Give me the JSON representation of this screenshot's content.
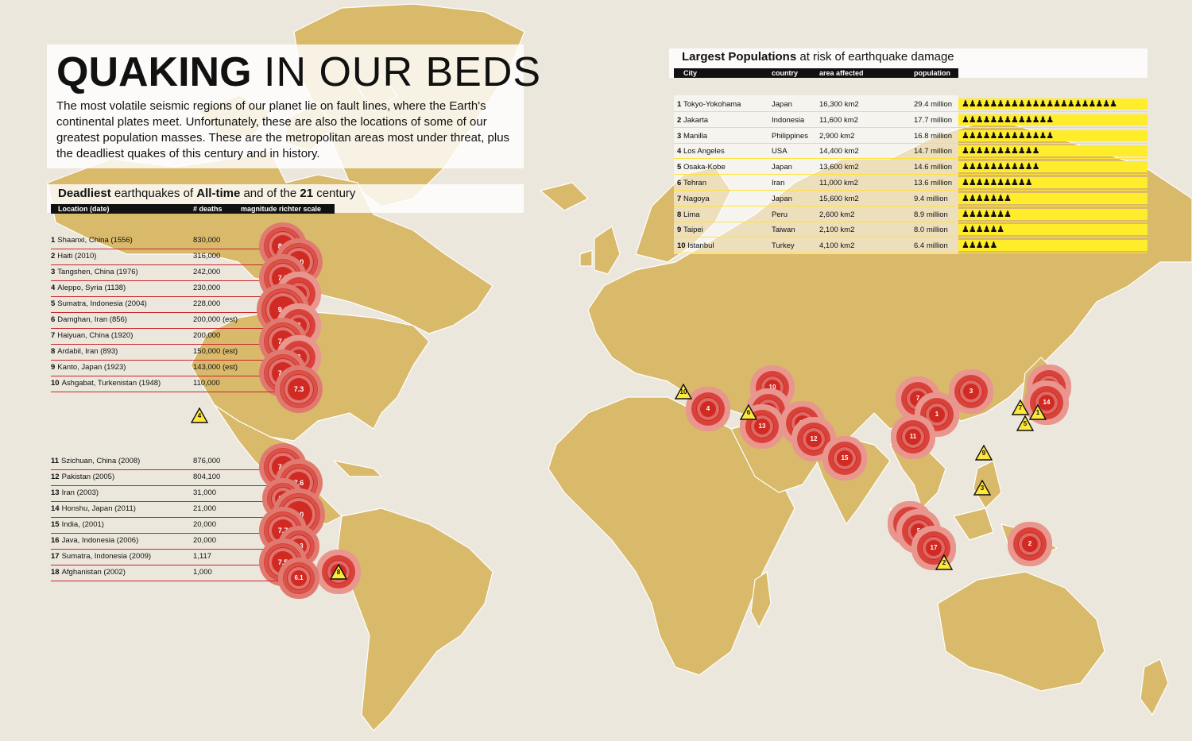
{
  "title_bold": "QUAKING",
  "title_rest": "IN OUR BEDS",
  "intro": "The most volatile seismic regions of our planet lie on fault lines, where the Earth's continental plates meet. Unfortunately, these are also the locations of some of our greatest population masses. These are the metropolitan areas most under threat, plus the deadliest quakes of this century and in history.",
  "quakes": {
    "title_bold_1": "Deadliest",
    "title_mid": " earthquakes of ",
    "title_bold_2": "All-time",
    "title_mid_2": " and of the ",
    "title_bold_3": "21",
    "title_end": " century",
    "headers": {
      "location": "Location (date)",
      "deaths": "# deaths",
      "magnitude": "magnitude richter scale"
    },
    "all_time": [
      {
        "rank": "1",
        "place": "Shaanxi",
        "detail": ", China (1556)",
        "deaths": "830,000",
        "magnitude": "8.0"
      },
      {
        "rank": "2",
        "place": "Haiti",
        "detail": " (2010)",
        "deaths": "316,000",
        "magnitude": "7.0"
      },
      {
        "rank": "3",
        "place": "Tangshen",
        "detail": ", China (1976)",
        "deaths": "242,000",
        "magnitude": "7.5"
      },
      {
        "rank": "4",
        "place": "Aleppo",
        "detail": ", Syria (1138)",
        "deaths": "230,000",
        "magnitude": "?"
      },
      {
        "rank": "5",
        "place": "Sumatra",
        "detail": ", Indonesia (2004)",
        "deaths": "228,000",
        "magnitude": "9.1"
      },
      {
        "rank": "6",
        "place": "Damghan",
        "detail": ", Iran (856)",
        "deaths": "200,000 (est)",
        "magnitude": "?"
      },
      {
        "rank": "7",
        "place": "Haiyuan",
        "detail": ", China (1920)",
        "deaths": "200,000",
        "magnitude": "7.8"
      },
      {
        "rank": "8",
        "place": "Ardabil",
        "detail": ", Iran (893)",
        "deaths": "150,000 (est)",
        "magnitude": "?"
      },
      {
        "rank": "9",
        "place": "Kanto",
        "detail": ", Japan (1923)",
        "deaths": "143,000 (est)",
        "magnitude": "7.9"
      },
      {
        "rank": "10",
        "place": "Ashgabat",
        "detail": ", Turkenistan (1948)",
        "deaths": "110,000",
        "magnitude": "7.3"
      }
    ],
    "century": [
      {
        "rank": "11",
        "place": "Szichuan",
        "detail": ", China (2008)",
        "deaths": "876,000",
        "magnitude": "7.9"
      },
      {
        "rank": "12",
        "place": "Pakistan",
        "detail": " (2005)",
        "deaths": "804,100",
        "magnitude": "7.6"
      },
      {
        "rank": "13",
        "place": "Iran",
        "detail": " (2003)",
        "deaths": "31,000",
        "magnitude": "6.6"
      },
      {
        "rank": "14",
        "place": "Honshu",
        "detail": ", Japan (2011)",
        "deaths": "21,000",
        "magnitude": "9.0"
      },
      {
        "rank": "15",
        "place": "India",
        "detail": ", (2001)",
        "deaths": "20,000",
        "magnitude": "7.7"
      },
      {
        "rank": "16",
        "place": "Java",
        "detail": ", Indonesia (2006)",
        "deaths": "20,000",
        "magnitude": "6.3"
      },
      {
        "rank": "17",
        "place": "Sumatra",
        "detail": ", Indonesia (2009)",
        "deaths": "1,117",
        "magnitude": "7.5"
      },
      {
        "rank": "18",
        "place": "Afghanistan",
        "detail": " (2002)",
        "deaths": "1,000",
        "magnitude": "6.1"
      }
    ]
  },
  "populations": {
    "title_bold": "Largest Populations",
    "title_rest": " at risk of earthquake damage",
    "headers": {
      "city": "City",
      "country": "country",
      "area": "area affected",
      "population": "population"
    },
    "rows": [
      {
        "rank": "1",
        "city": "Tokyo-Yokohama",
        "country": "Japan",
        "area": "16,300 km2",
        "population": "29.4 million",
        "millions": 29.4
      },
      {
        "rank": "2",
        "city": "Jakarta",
        "country": "Indonesia",
        "area": "11,600 km2",
        "population": "17.7 million",
        "millions": 17.7
      },
      {
        "rank": "3",
        "city": "Manilla",
        "country": "Philippines",
        "area": "2,900 km2",
        "population": "16.8 million",
        "millions": 16.8
      },
      {
        "rank": "4",
        "city": "Los Angeles",
        "country": "USA",
        "area": "14,400 km2",
        "population": "14.7 million",
        "millions": 14.7
      },
      {
        "rank": "5",
        "city": "Osaka-Kobe",
        "country": "Japan",
        "area": "13,600 km2",
        "population": "14.6 million",
        "millions": 14.6
      },
      {
        "rank": "6",
        "city": "Tehran",
        "country": "Iran",
        "area": "11,000 km2",
        "population": "13.6 million",
        "millions": 13.6
      },
      {
        "rank": "7",
        "city": "Nagoya",
        "country": "Japan",
        "area": "15,600 km2",
        "population": "9.4 million",
        "millions": 9.4
      },
      {
        "rank": "8",
        "city": "Lima",
        "country": "Peru",
        "area": "2,600 km2",
        "population": "8.9 million",
        "millions": 8.9
      },
      {
        "rank": "9",
        "city": "Taipei",
        "country": "Taiwan",
        "area": "2,100 km2",
        "population": "8.0 million",
        "millions": 8.0
      },
      {
        "rank": "10",
        "city": "Istanbul",
        "country": "Turkey",
        "area": "4,100 km2",
        "population": "6.4 million",
        "millions": 6.4
      }
    ]
  },
  "map_quake_markers": [
    "4",
    "8",
    "10",
    "6",
    "13",
    "18",
    "12",
    "15",
    "7",
    "3",
    "1",
    "11",
    "9",
    "14",
    "16",
    "5",
    "17",
    "2"
  ],
  "map_city_markers": [
    "1",
    "2",
    "3",
    "4",
    "5",
    "6",
    "7",
    "8",
    "9",
    "10"
  ],
  "colors": {
    "land": "#d9b96a",
    "ocean": "#ece7dc",
    "quake": "#d02a23",
    "bar": "#ffec2a"
  }
}
